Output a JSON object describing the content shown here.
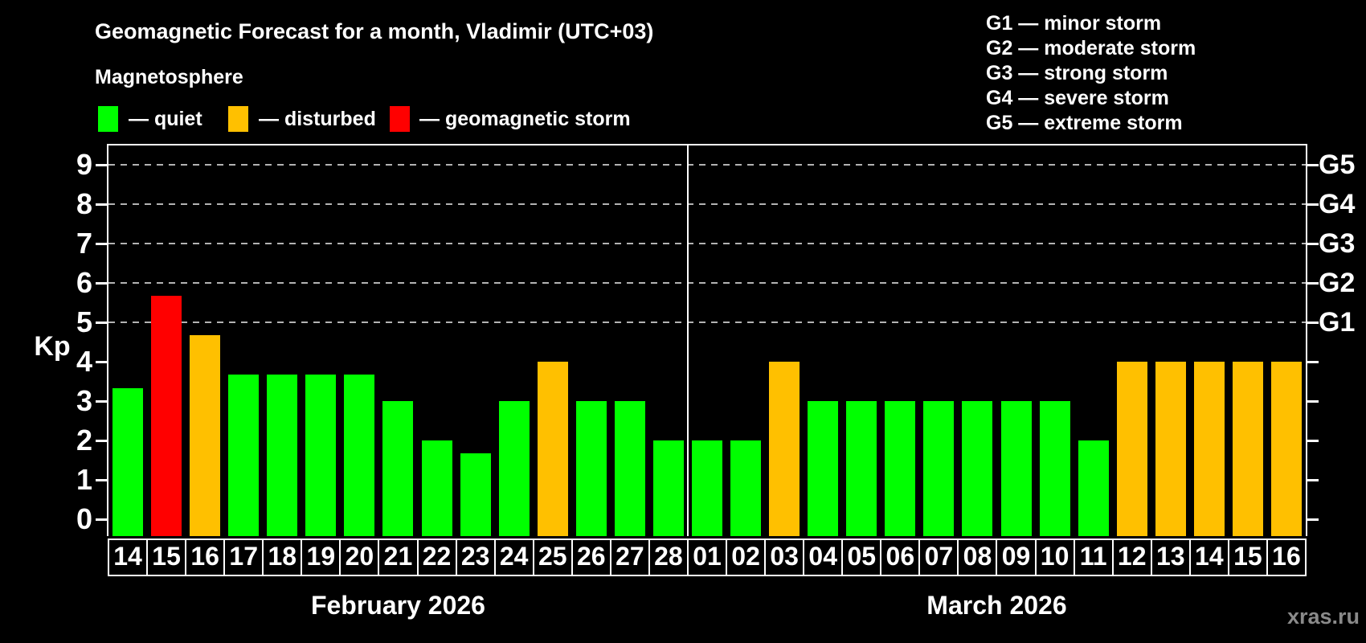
{
  "title": "Geomagnetic Forecast for a month, Vladimir (UTC+03)",
  "subtitle": "Magnetosphere",
  "legend": {
    "quiet": {
      "label": "— quiet",
      "color": "#00ff00"
    },
    "disturbed": {
      "label": "— disturbed",
      "color": "#ffc000"
    },
    "storm": {
      "label": "— geomagnetic storm",
      "color": "#ff0000"
    }
  },
  "g_legend": [
    "G1 — minor storm",
    "G2 — moderate storm",
    "G3 — strong storm",
    "G4 — severe storm",
    "G5 — extreme storm"
  ],
  "watermark": "xras.ru",
  "chart_data": {
    "type": "bar",
    "title": "Geomagnetic Forecast for a month, Vladimir (UTC+03)",
    "ylabel": "Kp",
    "ylim": [
      0,
      9
    ],
    "y_ticks": [
      0,
      1,
      2,
      3,
      4,
      5,
      6,
      7,
      8,
      9
    ],
    "gridlines_kp": [
      5,
      6,
      7,
      8,
      9
    ],
    "grid": "dashed horizontal lines at Kp 5-9 only",
    "legend_position": "top-left states, top-right G-scale",
    "right_axis_labels": [
      {
        "kp": 5,
        "label": "G1"
      },
      {
        "kp": 6,
        "label": "G2"
      },
      {
        "kp": 7,
        "label": "G3"
      },
      {
        "kp": 8,
        "label": "G4"
      },
      {
        "kp": 9,
        "label": "G5"
      }
    ],
    "state_colors": {
      "quiet": "#00ff00",
      "disturbed": "#ffc000",
      "storm": "#ff0000"
    },
    "months": [
      {
        "name": "February 2026",
        "bars": [
          {
            "day": "14",
            "kp": 3.33,
            "state": "quiet"
          },
          {
            "day": "15",
            "kp": 5.67,
            "state": "storm"
          },
          {
            "day": "16",
            "kp": 4.67,
            "state": "disturbed"
          },
          {
            "day": "17",
            "kp": 3.67,
            "state": "quiet"
          },
          {
            "day": "18",
            "kp": 3.67,
            "state": "quiet"
          },
          {
            "day": "19",
            "kp": 3.67,
            "state": "quiet"
          },
          {
            "day": "20",
            "kp": 3.67,
            "state": "quiet"
          },
          {
            "day": "21",
            "kp": 3.0,
            "state": "quiet"
          },
          {
            "day": "22",
            "kp": 2.0,
            "state": "quiet"
          },
          {
            "day": "23",
            "kp": 1.67,
            "state": "quiet"
          },
          {
            "day": "24",
            "kp": 3.0,
            "state": "quiet"
          },
          {
            "day": "25",
            "kp": 4.0,
            "state": "disturbed"
          },
          {
            "day": "26",
            "kp": 3.0,
            "state": "quiet"
          },
          {
            "day": "27",
            "kp": 3.0,
            "state": "quiet"
          },
          {
            "day": "28",
            "kp": 2.0,
            "state": "quiet"
          }
        ]
      },
      {
        "name": "March 2026",
        "bars": [
          {
            "day": "01",
            "kp": 2.0,
            "state": "quiet"
          },
          {
            "day": "02",
            "kp": 2.0,
            "state": "quiet"
          },
          {
            "day": "03",
            "kp": 4.0,
            "state": "disturbed"
          },
          {
            "day": "04",
            "kp": 3.0,
            "state": "quiet"
          },
          {
            "day": "05",
            "kp": 3.0,
            "state": "quiet"
          },
          {
            "day": "06",
            "kp": 3.0,
            "state": "quiet"
          },
          {
            "day": "07",
            "kp": 3.0,
            "state": "quiet"
          },
          {
            "day": "08",
            "kp": 3.0,
            "state": "quiet"
          },
          {
            "day": "09",
            "kp": 3.0,
            "state": "quiet"
          },
          {
            "day": "10",
            "kp": 3.0,
            "state": "quiet"
          },
          {
            "day": "11",
            "kp": 2.0,
            "state": "quiet"
          },
          {
            "day": "12",
            "kp": 4.0,
            "state": "disturbed"
          },
          {
            "day": "13",
            "kp": 4.0,
            "state": "disturbed"
          },
          {
            "day": "14",
            "kp": 4.0,
            "state": "disturbed"
          },
          {
            "day": "15",
            "kp": 4.0,
            "state": "disturbed"
          },
          {
            "day": "16",
            "kp": 4.0,
            "state": "disturbed"
          }
        ]
      }
    ]
  }
}
